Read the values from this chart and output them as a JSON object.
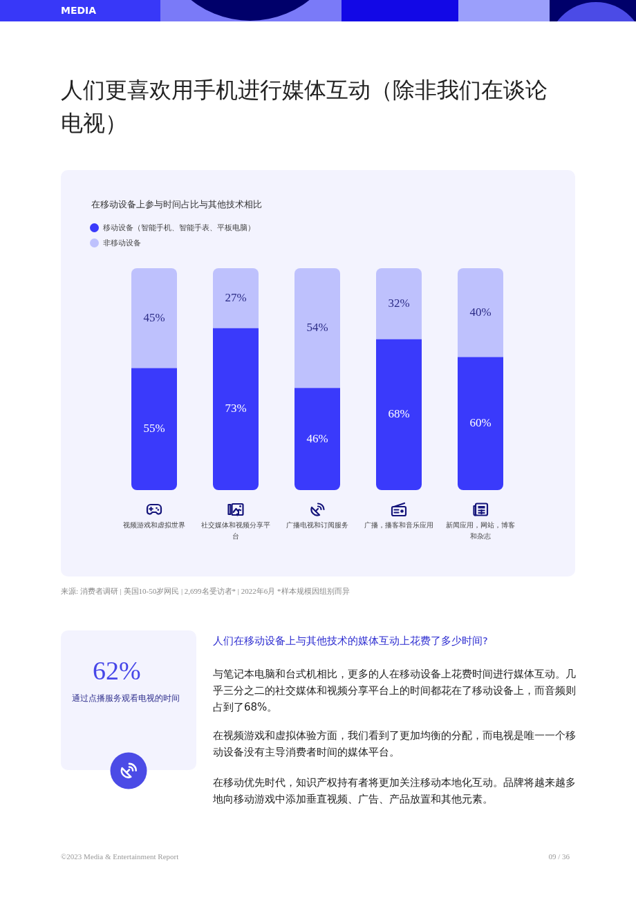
{
  "chart_data": {
    "type": "bar",
    "title": "人们更喜欢用手机进行媒体互动（除非我们在谈论电视）",
    "subtitle": "在移动设备上参与时间占比与其他技术相比",
    "categories": [
      "视频游戏和虚拟世界",
      "社交媒体和视频分享平台",
      "广播电视和订阅服务",
      "广播，播客和音乐应用",
      "新闻应用，网站，博客和杂志"
    ],
    "series": [
      {
        "name": "移动设备（智能手机、智能手表、平板电脑）",
        "color": "#3a3afb",
        "values": [
          55,
          73,
          46,
          68,
          60
        ],
        "value_labels": [
          "55%",
          "73%",
          "46%",
          "68%",
          "60%"
        ]
      },
      {
        "name": "非移动设备",
        "color": "#bec1fd",
        "values": [
          45,
          27,
          54,
          32,
          40
        ],
        "value_labels": [
          "45%",
          "27%",
          "54%",
          "32%",
          "40%"
        ]
      }
    ],
    "stacked": true,
    "legend": "top left",
    "tick_labels": "x",
    "annotations": [
      "MEDIA",
      "来源: 消费者调研 | 美国10-50岁网民 | 2,699名受访者* | 2022年6月 *样本规模因组别而异",
      "62%",
      "通过点播服务观看电视的时间",
      "人们在移动设备上与其他技术的媒体互动上花费了多少时间?",
      "与笔记本电脑和台式机相比，更多的人在移动设备上花费时间进行媒体互动。几乎三分之二的社交媒体和视频分享平台上的时间都花在了移动设备上，而音频则占到了68%。",
      "在视频游戏和虚拟体验方面，我们看到了更加均衡的分配，而电视是唯一一个移动设备没有主导消费者时间的媒体平台。",
      "在移动优先时代，知识产权持有者将更加关注移动本地化互动。品牌将越来越多地向移动游戏中添加垂直视频、广告、产品放置和其他元素。",
      "©2023 Media & Entertainment Report",
      "09 / 36"
    ]
  }
}
